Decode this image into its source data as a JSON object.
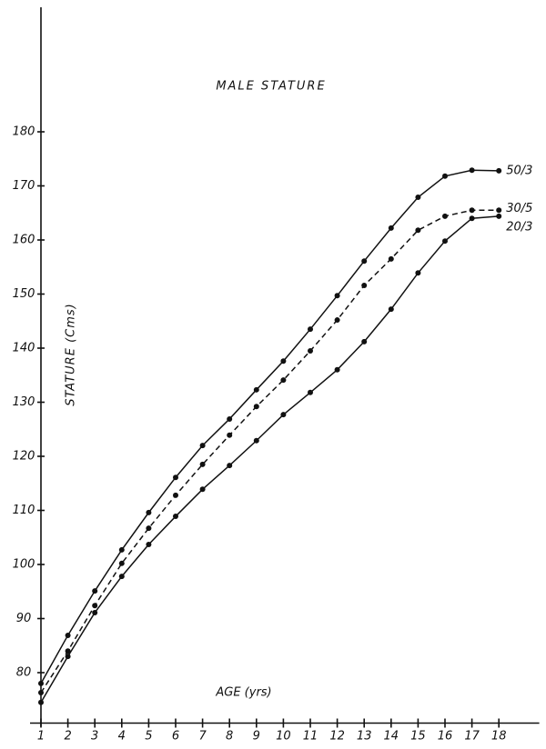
{
  "chart_data": {
    "type": "line",
    "title": "MALE STATURE",
    "y_label": "STATURE (Cms)",
    "annotation": "AGE (yrs)",
    "x": [
      1,
      2,
      3,
      4,
      5,
      6,
      7,
      8,
      9,
      10,
      11,
      12,
      13,
      14,
      15,
      16,
      17,
      18
    ],
    "xlim": [
      1,
      19.5
    ],
    "xticks": [
      1,
      2,
      3,
      4,
      5,
      6,
      7,
      8,
      9,
      10,
      11,
      12,
      13,
      14,
      15,
      16,
      17,
      18
    ],
    "ylim": [
      70,
      200
    ],
    "yticks": [
      80,
      90,
      100,
      110,
      120,
      130,
      140,
      150,
      160,
      170,
      180
    ],
    "series": [
      {
        "name": "50/3",
        "color": "#111111",
        "dashed": false,
        "values": [
          78,
          86.9,
          95.1,
          102.7,
          109.6,
          116.1,
          122,
          126.9,
          132.3,
          137.6,
          143.5,
          149.7,
          156.1,
          162.2,
          167.9,
          171.8,
          172.9,
          172.8
        ]
      },
      {
        "name": "30/5",
        "color": "#111111",
        "dashed": true,
        "values": [
          76.3,
          84,
          92.4,
          100.2,
          106.7,
          112.8,
          118.5,
          123.9,
          129.2,
          134.1,
          139.5,
          145.2,
          151.6,
          156.5,
          161.8,
          164.4,
          165.5,
          165.5
        ]
      },
      {
        "name": "20/3",
        "color": "#111111",
        "dashed": false,
        "values": [
          74.5,
          83,
          91.1,
          97.8,
          103.7,
          108.9,
          113.9,
          118.3,
          122.9,
          127.7,
          131.8,
          136,
          141.2,
          147.2,
          153.9,
          159.8,
          164,
          164.4
        ]
      }
    ]
  }
}
